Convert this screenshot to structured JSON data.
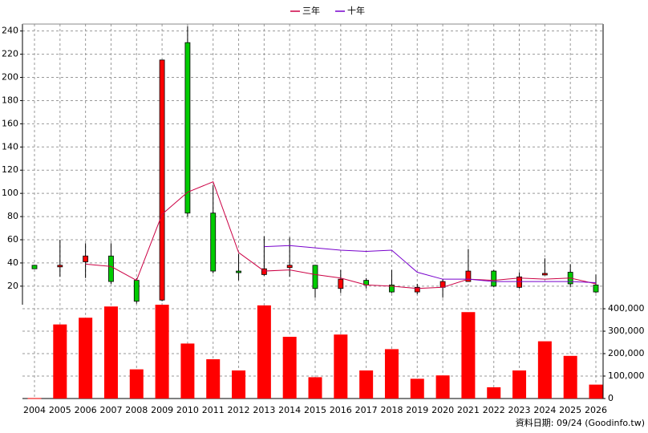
{
  "chart_data": [
    {
      "type": "candlestick",
      "open": [
        38,
        38,
        41,
        46,
        25,
        8,
        230,
        83,
        33,
        30,
        36,
        38,
        18,
        25,
        21,
        15,
        19,
        24,
        33,
        19,
        30,
        32,
        21
      ],
      "high": [
        38,
        60,
        57,
        57,
        27,
        215,
        244,
        107,
        48,
        63,
        62,
        38,
        34,
        27,
        34,
        22,
        26,
        52,
        34,
        32,
        44,
        39,
        30
      ],
      "low": [
        35,
        28,
        27,
        22,
        5,
        7,
        80,
        31,
        25,
        29,
        28,
        10,
        14,
        18,
        14,
        13,
        10,
        24,
        19,
        18,
        30,
        19,
        14
      ],
      "close": [
        35,
        38,
        46,
        24,
        7,
        215,
        83,
        33,
        32,
        35,
        38,
        18,
        26,
        21,
        15,
        19,
        24,
        33,
        20,
        28,
        31,
        22,
        15
      ],
      "up_color": "#ff0000",
      "down_color": "#00cc00",
      "series": [
        {
          "name": "三年",
          "color": "#cc0044",
          "values": [
            null,
            null,
            39,
            37,
            25,
            82,
            101,
            110,
            49,
            33,
            34,
            30,
            27,
            21,
            20,
            18,
            19,
            26,
            25,
            27,
            26,
            27,
            22
          ]
        },
        {
          "name": "十年",
          "color": "#7700cc",
          "values": [
            null,
            null,
            null,
            null,
            null,
            null,
            null,
            null,
            null,
            54,
            55,
            53,
            51,
            50,
            51,
            32,
            26,
            26,
            24,
            24,
            24,
            24,
            23
          ]
        }
      ],
      "ylim": [
        4,
        246
      ],
      "yticks": [
        20,
        40,
        60,
        80,
        100,
        120,
        140,
        160,
        180,
        200,
        220,
        240
      ],
      "grid": true
    },
    {
      "type": "bar",
      "categories": [
        "2004",
        "2005",
        "2006",
        "2007",
        "2008",
        "2009",
        "2010",
        "2011",
        "2012",
        "2013",
        "2014",
        "2015",
        "2016",
        "2017",
        "2018",
        "2019",
        "2020",
        "2021",
        "2022",
        "2023",
        "2024",
        "2025",
        "2026"
      ],
      "values": [
        2000,
        330000,
        360000,
        410000,
        130000,
        418000,
        245000,
        175000,
        125000,
        415000,
        275000,
        95000,
        285000,
        125000,
        220000,
        88000,
        103000,
        385000,
        50000,
        125000,
        255000,
        190000,
        62000
      ],
      "color": "#ff0000",
      "ylim": [
        0,
        418000
      ],
      "yticks": [
        0,
        {
          "value": 100000,
          "label": "100,000"
        },
        {
          "value": 200000,
          "label": "200,000"
        },
        {
          "value": 300000,
          "label": "300,000"
        },
        {
          "value": 400000,
          "label": "400,000"
        }
      ],
      "grid": true,
      "note": "資料日期: 09/24 (Goodinfo.tw)"
    }
  ]
}
